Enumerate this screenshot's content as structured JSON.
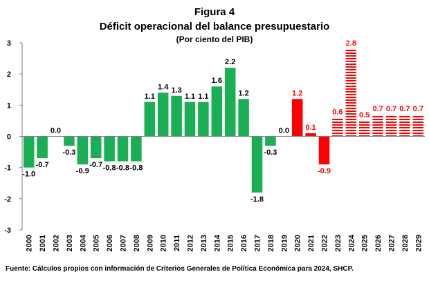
{
  "chart_data": {
    "type": "bar",
    "title": "Figura 4",
    "subtitle": "Déficit operacional del balance presupuestario",
    "subtitle2": "(Por ciento del PIB)",
    "source": "Fuente: Cálculos propios con información de Criterios Generales de Política Económica para 2024, SHCP.",
    "categories": [
      "2000",
      "2001",
      "2002",
      "2003",
      "2004",
      "2005",
      "2006",
      "2007",
      "2008",
      "2009",
      "2010",
      "2011",
      "2012",
      "2013",
      "2014",
      "2015",
      "2016",
      "2017",
      "2018",
      "2019",
      "2020",
      "2021",
      "2022",
      "2023",
      "2024",
      "2025",
      "2026",
      "2027",
      "2028",
      "2029"
    ],
    "values": [
      -1.0,
      -0.7,
      0.0,
      -0.3,
      -0.9,
      -0.7,
      -0.8,
      -0.8,
      -0.8,
      1.1,
      1.4,
      1.3,
      1.1,
      1.1,
      1.6,
      2.2,
      1.2,
      -1.8,
      -0.3,
      0.0,
      1.2,
      0.1,
      -0.9,
      0.6,
      2.8,
      0.5,
      0.7,
      0.7,
      0.7,
      0.7
    ],
    "labels": [
      "-1.0",
      "-0.7",
      "0.0",
      "-0.3",
      "-0.9",
      "-0.7",
      "-0.8",
      "-0.8",
      "-0.8",
      "1.1",
      "1.4",
      "1.3",
      "1.1",
      "1.1",
      "1.6",
      "2.2",
      "1.2",
      "-1.8",
      "-0.3",
      "0.0",
      "1.2",
      "0.1",
      "-0.9",
      "0.6",
      "2.8",
      "0.5",
      "0.7",
      "0.7",
      "0.7",
      "0.7"
    ],
    "styles": [
      "green",
      "green",
      "green",
      "green",
      "green",
      "green",
      "green",
      "green",
      "green",
      "green",
      "green",
      "green",
      "green",
      "green",
      "green",
      "green",
      "green",
      "green",
      "green",
      "green",
      "red",
      "red",
      "red",
      "red-hatched",
      "red-hatched",
      "red-hatched",
      "red-hatched",
      "red-hatched",
      "red-hatched",
      "red-hatched"
    ],
    "ylim": [
      -3,
      3
    ],
    "yticks": [
      "-3",
      "-2",
      "-1",
      "0",
      "1",
      "2",
      "3"
    ],
    "grid": false,
    "colors": {
      "green": "#1aaf54",
      "red": "#ff0000",
      "red_label": "#ff0000",
      "default_label": "#000000"
    }
  }
}
